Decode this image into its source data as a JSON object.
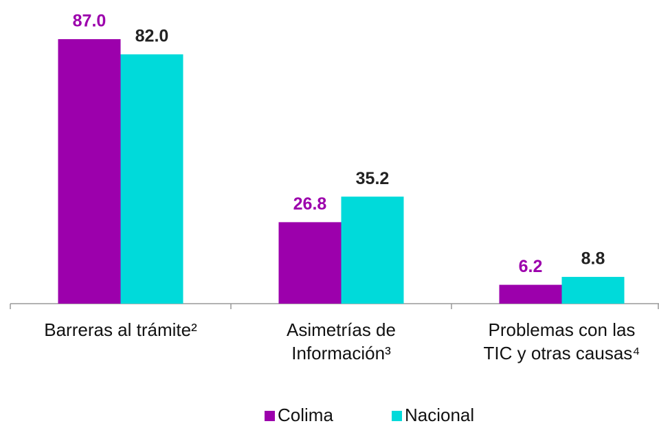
{
  "chart_data": {
    "type": "bar",
    "categories": [
      "Barreras al trámite²",
      "Asimetrías de\nInformación³",
      "Problemas con las\nTIC y otras causas⁴"
    ],
    "series": [
      {
        "name": "Colima",
        "color": "#9c00ac",
        "label_color": "#9c00ac",
        "values": [
          87.0,
          26.8,
          6.2
        ],
        "value_labels": [
          "87.0",
          "26.8",
          "6.2"
        ]
      },
      {
        "name": "Nacional",
        "color": "#00dada",
        "label_color": "#222222",
        "values": [
          82.0,
          35.2,
          8.8
        ],
        "value_labels": [
          "82.0",
          "35.2",
          "8.8"
        ]
      }
    ],
    "legend": "bottom"
  }
}
